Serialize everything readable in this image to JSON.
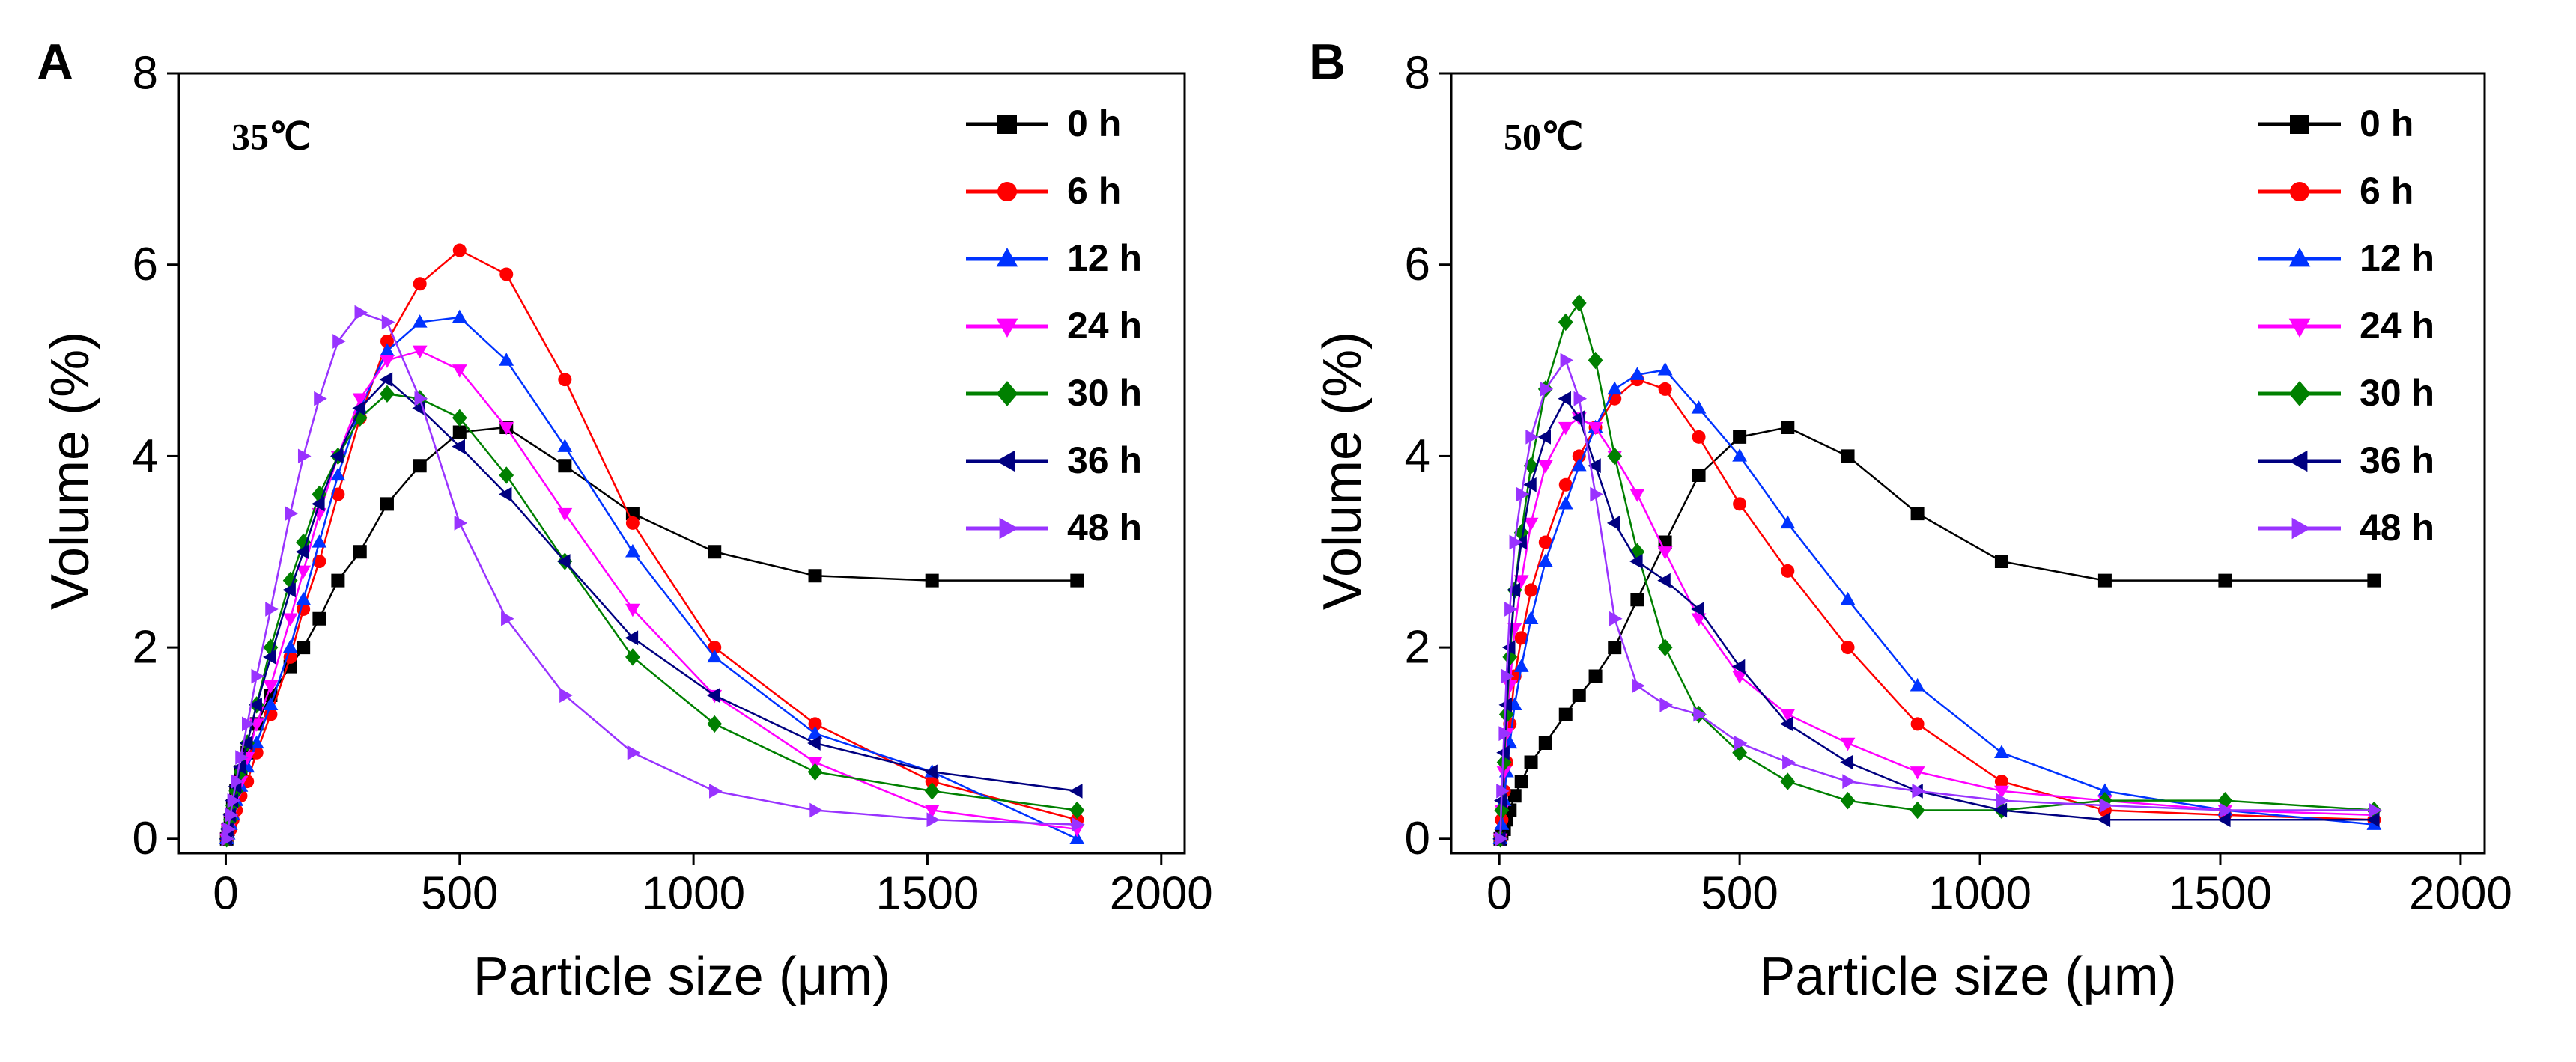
{
  "chart_data": [
    {
      "type": "line",
      "panel": "A",
      "annotation": "35℃",
      "xlabel": "Particle size (μm)",
      "ylabel": "Volume (%)",
      "xlim": [
        -100,
        2050
      ],
      "ylim": [
        -0.15,
        8
      ],
      "xticks": [
        0,
        500,
        1000,
        1500,
        2000
      ],
      "yticks": [
        0,
        2,
        4,
        6,
        8
      ],
      "x": [
        2,
        5,
        10,
        15,
        22,
        32,
        46,
        66,
        96,
        138,
        166,
        200,
        240,
        287,
        345,
        415,
        500,
        600,
        725,
        870,
        1045,
        1260,
        1510,
        1820
      ],
      "series": [
        {
          "name": "0 h",
          "color": "#000000",
          "marker": "square",
          "values": [
            0,
            0.1,
            0.2,
            0.35,
            0.5,
            0.7,
            0.9,
            1.2,
            1.5,
            1.8,
            2.0,
            2.3,
            2.7,
            3.0,
            3.5,
            3.9,
            4.25,
            4.3,
            3.9,
            3.4,
            3.0,
            2.75,
            2.7,
            2.7
          ]
        },
        {
          "name": "6 h",
          "color": "#ff0000",
          "marker": "circle",
          "values": [
            0,
            0.05,
            0.1,
            0.2,
            0.3,
            0.45,
            0.6,
            0.9,
            1.3,
            1.9,
            2.4,
            2.9,
            3.6,
            4.4,
            5.2,
            5.8,
            6.15,
            5.9,
            4.8,
            3.3,
            2.0,
            1.2,
            0.6,
            0.2
          ]
        },
        {
          "name": "12 h",
          "color": "#0033ff",
          "marker": "triangle-up",
          "values": [
            0,
            0.05,
            0.15,
            0.25,
            0.4,
            0.55,
            0.75,
            1.0,
            1.4,
            2.0,
            2.5,
            3.1,
            3.8,
            4.5,
            5.1,
            5.4,
            5.45,
            5.0,
            4.1,
            3.0,
            1.9,
            1.1,
            0.7,
            0
          ]
        },
        {
          "name": "24 h",
          "color": "#ff00ff",
          "marker": "triangle-down",
          "values": [
            0,
            0.1,
            0.2,
            0.3,
            0.45,
            0.6,
            0.85,
            1.2,
            1.6,
            2.3,
            2.8,
            3.4,
            4.0,
            4.6,
            5.0,
            5.1,
            4.9,
            4.3,
            3.4,
            2.4,
            1.5,
            0.8,
            0.3,
            0.1
          ]
        },
        {
          "name": "30 h",
          "color": "#008000",
          "marker": "diamond",
          "values": [
            0,
            0.1,
            0.2,
            0.35,
            0.5,
            0.7,
            1.0,
            1.4,
            2.0,
            2.7,
            3.1,
            3.6,
            4.0,
            4.4,
            4.65,
            4.6,
            4.4,
            3.8,
            2.9,
            1.9,
            1.2,
            0.7,
            0.5,
            0.3
          ]
        },
        {
          "name": "36 h",
          "color": "#000080",
          "marker": "triangle-left",
          "values": [
            0,
            0.1,
            0.25,
            0.4,
            0.55,
            0.75,
            1.0,
            1.4,
            1.9,
            2.6,
            3.0,
            3.5,
            4.0,
            4.5,
            4.8,
            4.5,
            4.1,
            3.6,
            2.9,
            2.1,
            1.5,
            1.0,
            0.7,
            0.5
          ]
        },
        {
          "name": "48 h",
          "color": "#9933ff",
          "marker": "triangle-right",
          "values": [
            0,
            0.1,
            0.25,
            0.4,
            0.6,
            0.85,
            1.2,
            1.7,
            2.4,
            3.4,
            4.0,
            4.6,
            5.2,
            5.5,
            5.4,
            4.6,
            3.3,
            2.3,
            1.5,
            0.9,
            0.5,
            0.3,
            0.2,
            0.15
          ]
        }
      ]
    },
    {
      "type": "line",
      "panel": "B",
      "annotation": "50℃",
      "xlabel": "Particle size (μm)",
      "ylabel": "Volume (%)",
      "xlim": [
        -100,
        2050
      ],
      "ylim": [
        -0.15,
        8
      ],
      "xticks": [
        0,
        500,
        1000,
        1500,
        2000
      ],
      "yticks": [
        0,
        2,
        4,
        6,
        8
      ],
      "x": [
        2,
        5,
        10,
        15,
        22,
        32,
        46,
        66,
        96,
        138,
        166,
        200,
        240,
        287,
        345,
        415,
        500,
        600,
        725,
        870,
        1045,
        1260,
        1510,
        1820
      ],
      "series": [
        {
          "name": "0 h",
          "color": "#000000",
          "marker": "square",
          "values": [
            0,
            0.05,
            0.1,
            0.2,
            0.3,
            0.45,
            0.6,
            0.8,
            1.0,
            1.3,
            1.5,
            1.7,
            2.0,
            2.5,
            3.1,
            3.8,
            4.2,
            4.3,
            4.0,
            3.4,
            2.9,
            2.7,
            2.7,
            2.7
          ]
        },
        {
          "name": "6 h",
          "color": "#ff0000",
          "marker": "circle",
          "values": [
            0,
            0.2,
            0.5,
            0.8,
            1.2,
            1.7,
            2.1,
            2.6,
            3.1,
            3.7,
            4.0,
            4.3,
            4.6,
            4.8,
            4.7,
            4.2,
            3.5,
            2.8,
            2.0,
            1.2,
            0.6,
            0.3,
            0.25,
            0.2
          ]
        },
        {
          "name": "12 h",
          "color": "#0033ff",
          "marker": "triangle-up",
          "values": [
            0,
            0.15,
            0.4,
            0.7,
            1.0,
            1.4,
            1.8,
            2.3,
            2.9,
            3.5,
            3.9,
            4.3,
            4.7,
            4.85,
            4.9,
            4.5,
            4.0,
            3.3,
            2.5,
            1.6,
            0.9,
            0.5,
            0.3,
            0.15
          ]
        },
        {
          "name": "24 h",
          "color": "#ff00ff",
          "marker": "triangle-down",
          "values": [
            0,
            0.3,
            0.7,
            1.1,
            1.6,
            2.2,
            2.7,
            3.3,
            3.9,
            4.3,
            4.4,
            4.3,
            4.0,
            3.6,
            3.0,
            2.3,
            1.7,
            1.3,
            1.0,
            0.7,
            0.5,
            0.4,
            0.3,
            0.25
          ]
        },
        {
          "name": "30 h",
          "color": "#008000",
          "marker": "diamond",
          "values": [
            0,
            0.3,
            0.8,
            1.3,
            1.9,
            2.6,
            3.2,
            3.9,
            4.7,
            5.4,
            5.6,
            5.0,
            4.0,
            3.0,
            2.0,
            1.3,
            0.9,
            0.6,
            0.4,
            0.3,
            0.3,
            0.4,
            0.4,
            0.3
          ]
        },
        {
          "name": "36 h",
          "color": "#000080",
          "marker": "triangle-left",
          "values": [
            0,
            0.4,
            0.9,
            1.4,
            2.0,
            2.6,
            3.1,
            3.7,
            4.2,
            4.6,
            4.4,
            3.9,
            3.3,
            2.9,
            2.7,
            2.4,
            1.8,
            1.2,
            0.8,
            0.5,
            0.3,
            0.2,
            0.2,
            0.2
          ]
        },
        {
          "name": "48 h",
          "color": "#9933ff",
          "marker": "triangle-right",
          "values": [
            0,
            0.5,
            1.1,
            1.7,
            2.4,
            3.1,
            3.6,
            4.2,
            4.7,
            5.0,
            4.6,
            3.6,
            2.3,
            1.6,
            1.4,
            1.3,
            1.0,
            0.8,
            0.6,
            0.5,
            0.4,
            0.35,
            0.3,
            0.3
          ]
        }
      ]
    }
  ]
}
